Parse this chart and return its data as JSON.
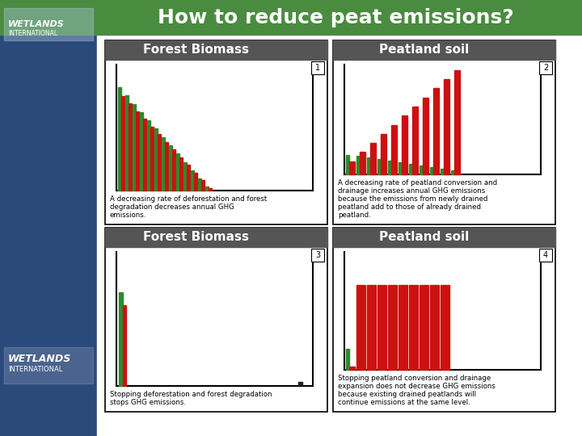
{
  "title": "How to reduce peat emissions?",
  "title_bg": "#4a8c3f",
  "title_color": "#ffffff",
  "left_sidebar_color": "#2b4a7c",
  "panel_header_bg": "#555555",
  "bg_color": "#ffffff",
  "green": "#2d8a2d",
  "red": "#cc1111",
  "panels": [
    {
      "label": "Forest Biomass",
      "number": "1",
      "row": 0,
      "col": 0,
      "bar_type": "decreasing_forest",
      "text": "A decreasing rate of deforestation and forest\ndegradation decreases annual GHG\nemissions."
    },
    {
      "label": "Peatland soil",
      "number": "2",
      "row": 0,
      "col": 1,
      "bar_type": "increasing_peat",
      "text": "A decreasing rate of peatland conversion and\ndrainage increases annual GHG emissions\nbecause the emissions from newly drained\npeatland add to those of already drained\npeatland."
    },
    {
      "label": "Forest Biomass",
      "number": "3",
      "row": 1,
      "col": 0,
      "bar_type": "stopped_forest",
      "text": "Stopping deforestation and forest degradation\nstops GHG emissions."
    },
    {
      "label": "Peatland soil",
      "number": "4",
      "row": 1,
      "col": 1,
      "bar_type": "stopped_peat",
      "text": "Stopping peatland conversion and drainage\nexpansion does not decrease GHG emissions\nbecause existing drained peatlands will\ncontinue emissions at the same level."
    }
  ]
}
